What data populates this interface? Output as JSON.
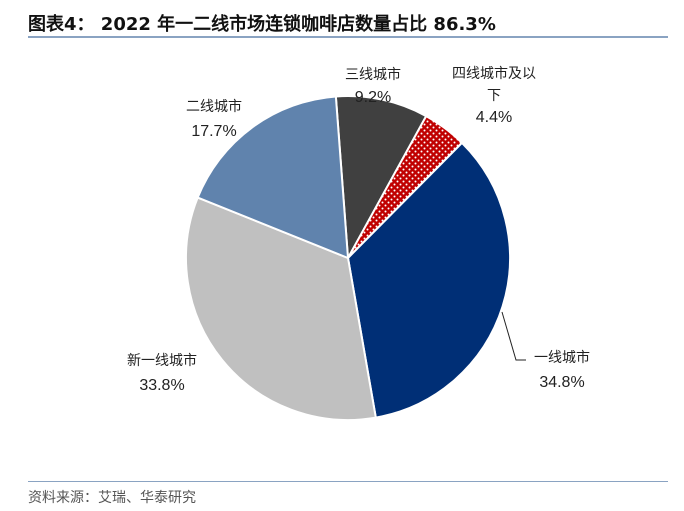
{
  "title": "图表4：  2022 年一二线市场连锁咖啡店数量占比 86.3%",
  "source": "资料来源：艾瑞、华泰研究",
  "chart_data": {
    "type": "pie",
    "title": "图表4：  2022 年一二线市场连锁咖啡店数量占比 86.3%",
    "slices": [
      {
        "label": "三线城市",
        "value": 9.2,
        "value_label": "9.2%",
        "color": "#404040"
      },
      {
        "label": "四线城市及以下",
        "label_lines": [
          "四线城市及以",
          "下"
        ],
        "value": 4.4,
        "value_label": "4.4%",
        "color": "#c00000",
        "pattern": "white-dots"
      },
      {
        "label": "一线城市",
        "value": 34.8,
        "value_label": "34.8%",
        "color": "#002f76"
      },
      {
        "label": "新一线城市",
        "value": 33.8,
        "value_label": "33.8%",
        "color": "#c0c0c0"
      },
      {
        "label": "二线城市",
        "value": 17.7,
        "value_label": "17.7%",
        "color": "#6083ad"
      }
    ],
    "legend": "none"
  }
}
